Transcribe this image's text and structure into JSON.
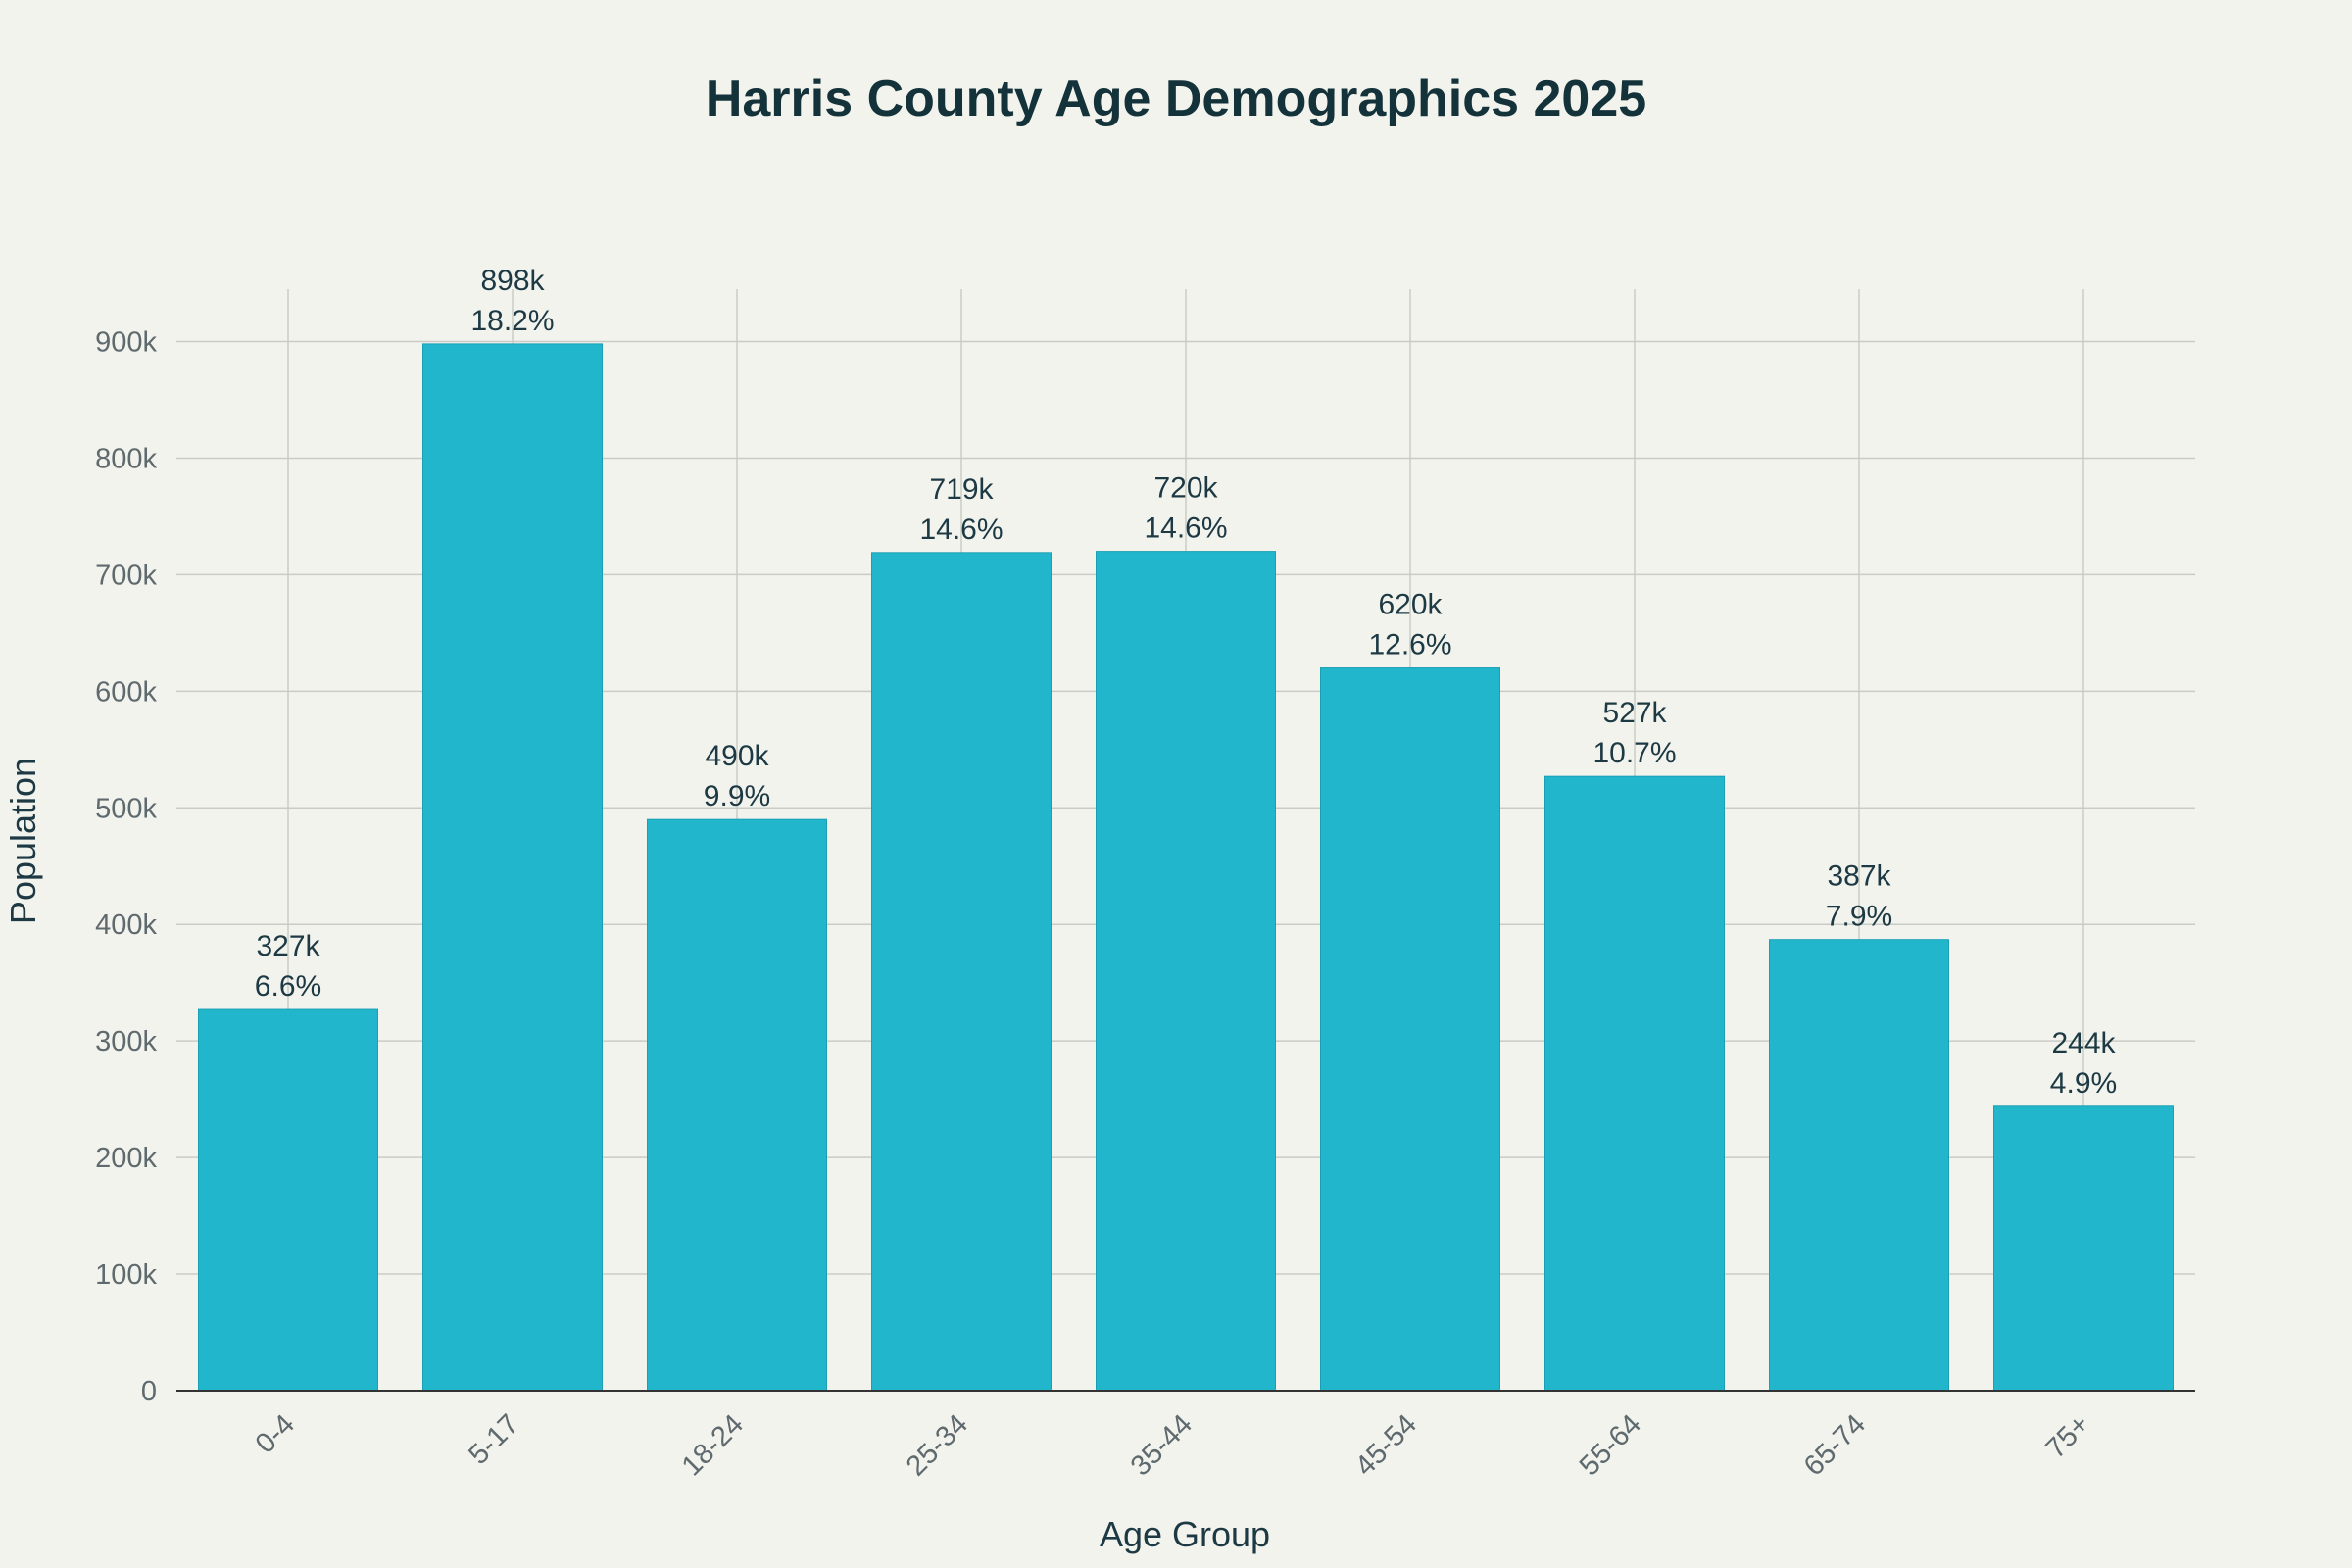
{
  "chart_data": {
    "type": "bar",
    "title": "Harris County Age Demographics 2025",
    "xlabel": "Age Group",
    "ylabel": "Population",
    "categories": [
      "0-4",
      "5-17",
      "18-24",
      "25-34",
      "35-44",
      "45-54",
      "55-64",
      "65-74",
      "75+"
    ],
    "values": [
      327000,
      898000,
      490000,
      719000,
      720000,
      620000,
      527000,
      387000,
      244000
    ],
    "value_labels": [
      "327k",
      "898k",
      "490k",
      "719k",
      "720k",
      "620k",
      "527k",
      "387k",
      "244k"
    ],
    "percent_labels": [
      "6.6%",
      "18.2%",
      "9.9%",
      "14.6%",
      "14.6%",
      "12.6%",
      "10.7%",
      "7.9%",
      "4.9%"
    ],
    "ylim": [
      0,
      945000
    ],
    "yticks": [
      0,
      100000,
      200000,
      300000,
      400000,
      500000,
      600000,
      700000,
      800000,
      900000
    ],
    "ytick_labels": [
      "0",
      "100k",
      "200k",
      "300k",
      "400k",
      "500k",
      "600k",
      "700k",
      "800k",
      "900k"
    ],
    "grid": true,
    "legend": "none",
    "colors": {
      "bar": "#21b6cc",
      "bar_edge": "#1a9fb3",
      "title": "#14323a",
      "text": "#1d3a44",
      "tick": "#5f6a6e",
      "grid": "#c9ccc6",
      "background": "#f3f3ee"
    }
  }
}
